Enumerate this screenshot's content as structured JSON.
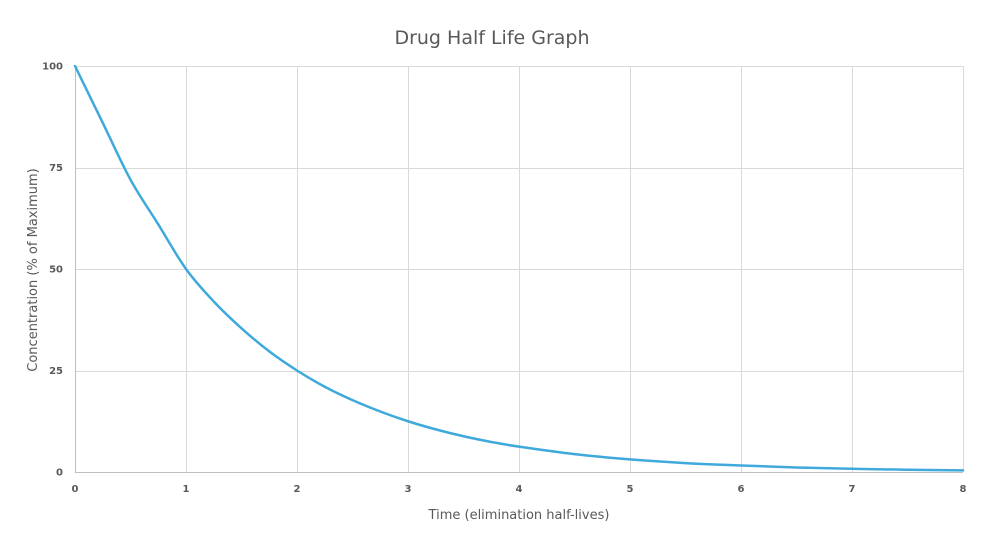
{
  "chart_data": {
    "type": "line",
    "title": "Drug Half Life Graph",
    "xlabel": "Time (elimination half-lives)",
    "ylabel": "Concentration (% of Maximum)",
    "xlim": [
      0,
      8
    ],
    "ylim": [
      0,
      100
    ],
    "x_ticks": [
      "0",
      "1",
      "2",
      "3",
      "4",
      "5",
      "6",
      "7",
      "8"
    ],
    "y_ticks": [
      "0",
      "25",
      "50",
      "75",
      "100"
    ],
    "grid": true,
    "legend": "none",
    "series": [
      {
        "color": "#3fa9dc",
        "x": [
          0,
          0.25,
          0.5,
          0.75,
          1,
          1.25,
          1.5,
          1.75,
          2,
          2.25,
          2.5,
          2.75,
          3,
          3.25,
          3.5,
          3.75,
          4,
          4.5,
          5,
          5.5,
          6,
          6.5,
          7,
          7.5,
          8
        ],
        "y": [
          100,
          86,
          72,
          61,
          50,
          42,
          35.4,
          29.7,
          25,
          21,
          17.7,
          14.9,
          12.5,
          10.5,
          8.8,
          7.4,
          6.25,
          4.4,
          3.1,
          2.2,
          1.6,
          1.1,
          0.8,
          0.55,
          0.4
        ]
      }
    ]
  }
}
